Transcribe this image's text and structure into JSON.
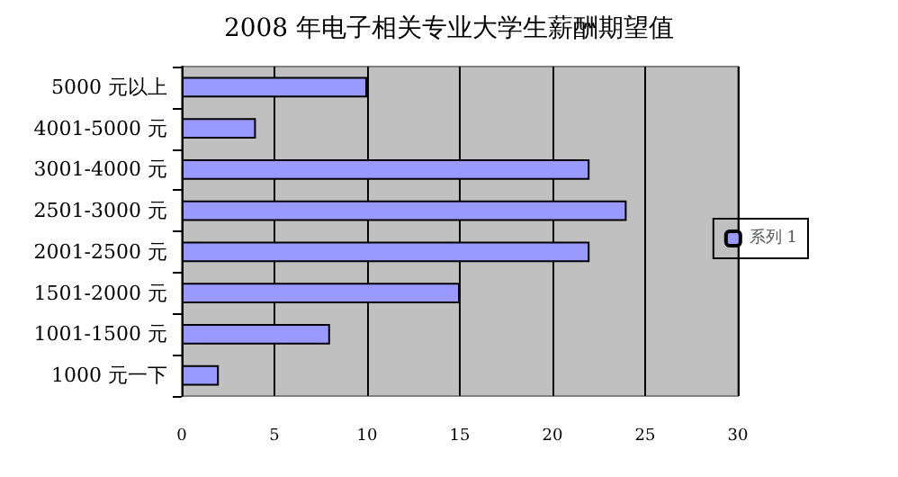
{
  "chart_data": {
    "type": "bar",
    "orientation": "horizontal",
    "title": "2008 年电子相关专业大学生薪酬期望值",
    "categories": [
      "5000 元以上",
      "4001-5000 元",
      "3001-4000 元",
      "2501-3000 元",
      "2001-2500 元",
      "1501-2000 元",
      "1001-1500 元",
      "1000 元一下"
    ],
    "series": [
      {
        "name": "系列 1",
        "color": "#9999ff",
        "values": [
          10,
          4,
          22,
          24,
          22,
          15,
          8,
          2
        ]
      }
    ],
    "xlim": [
      0,
      30
    ],
    "xticks": [
      0,
      5,
      10,
      15,
      20,
      25,
      30
    ],
    "grid": "x",
    "legend": "right"
  }
}
